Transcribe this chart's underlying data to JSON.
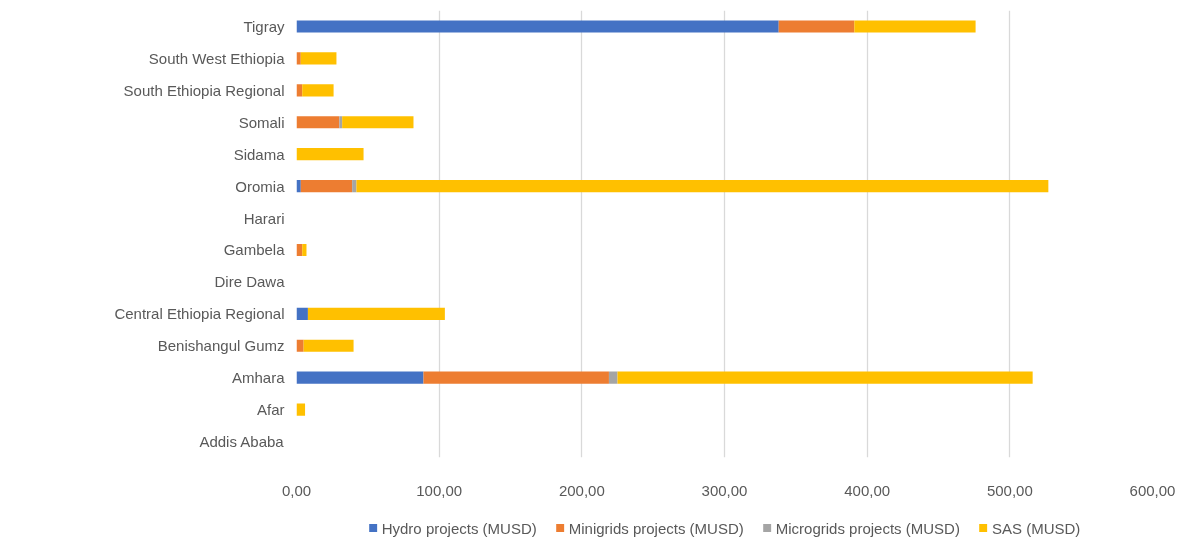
{
  "chart_data": {
    "type": "bar",
    "orientation": "horizontal",
    "stacked": true,
    "categories": [
      "Tigray",
      "South West Ethiopia",
      "South Ethiopia Regional",
      "Somali",
      "Sidama",
      "Oromia",
      "Harari",
      "Gambela",
      "Dire Dawa",
      "Central Ethiopia Regional",
      "Benishangul Gumz",
      "Amhara",
      "Afar",
      "Addis Ababa"
    ],
    "series": [
      {
        "name": "Hydro projects (MUSD)",
        "color": "#4472c4",
        "values": [
          338,
          0,
          0,
          0,
          0,
          3,
          0,
          0,
          0,
          8,
          0,
          89,
          0,
          0
        ]
      },
      {
        "name": "Minigrids projects (MUSD)",
        "color": "#ed7d31",
        "values": [
          53,
          3,
          4,
          30,
          0,
          36,
          0,
          4,
          0,
          0,
          5,
          130,
          0,
          0
        ]
      },
      {
        "name": "Microgrids projects (MUSD)",
        "color": "#a5a5a5",
        "values": [
          0,
          0,
          0,
          2,
          0,
          3,
          0,
          0,
          0,
          0,
          0,
          6,
          0,
          0
        ]
      },
      {
        "name": "SAS (MUSD)",
        "color": "#ffc000",
        "values": [
          85,
          25,
          22,
          50,
          47,
          485,
          0,
          3,
          0,
          96,
          35,
          291,
          6,
          0
        ]
      }
    ],
    "xlim": [
      0,
      600
    ],
    "xticks": [
      {
        "value": 0,
        "label": "0,00"
      },
      {
        "value": 100,
        "label": "100,00"
      },
      {
        "value": 200,
        "label": "200,00"
      },
      {
        "value": 300,
        "label": "300,00"
      },
      {
        "value": 400,
        "label": "400,00"
      },
      {
        "value": 500,
        "label": "500,00"
      },
      {
        "value": 600,
        "label": "600,00"
      }
    ],
    "grid": "x",
    "legend": "bottom"
  }
}
